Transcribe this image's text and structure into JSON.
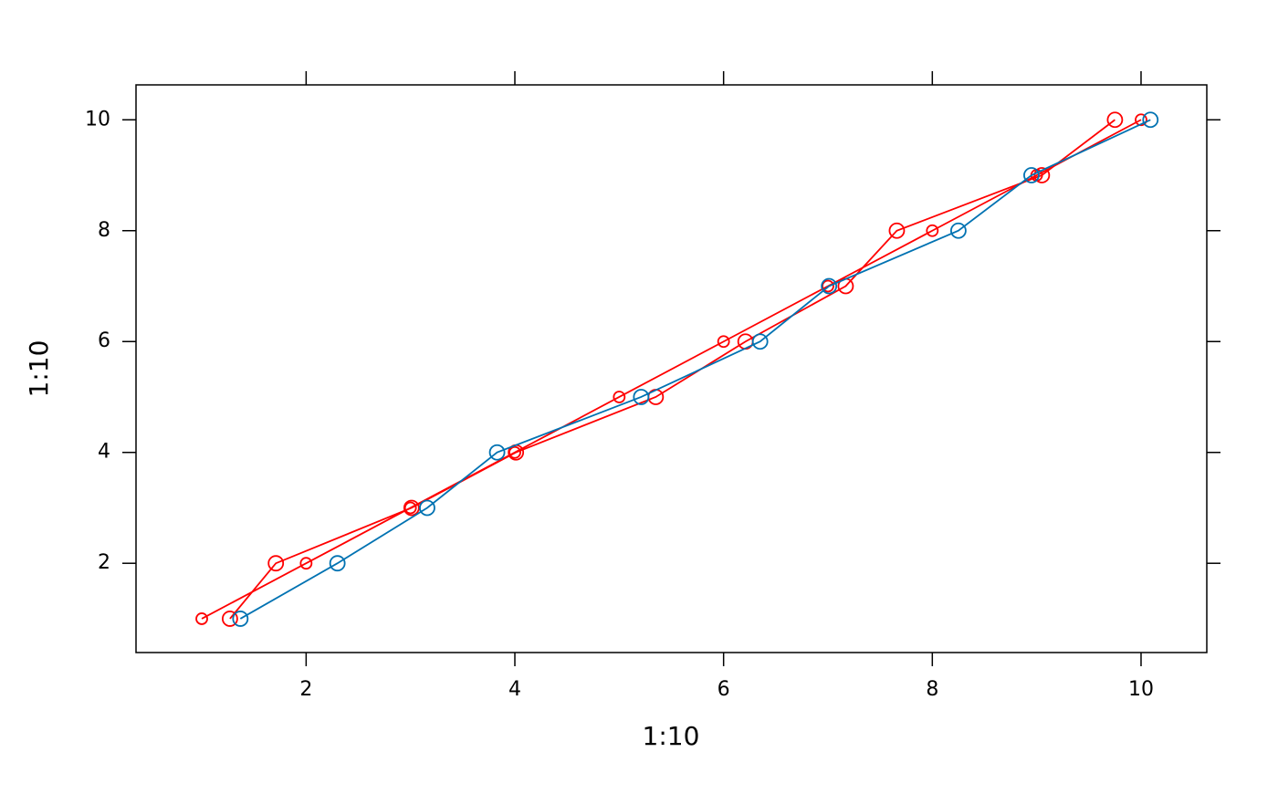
{
  "chart_data": {
    "type": "line",
    "xlabel": "1:10",
    "ylabel": "1:10",
    "xlim": [
      0.37,
      10.63
    ],
    "ylim": [
      0.39,
      10.63
    ],
    "xticks": [
      2,
      4,
      6,
      8,
      10
    ],
    "yticks": [
      2,
      4,
      6,
      8,
      10
    ],
    "series": [
      {
        "color": "#ff0000",
        "marker_size": 6,
        "x": [
          1,
          2,
          3,
          4,
          5,
          6,
          7,
          8,
          9,
          10
        ],
        "values": [
          1,
          2,
          3,
          4,
          5,
          6,
          7,
          8,
          9,
          10
        ]
      },
      {
        "color": "#ff0000",
        "marker_size": 8,
        "x": [
          1.27,
          1.71,
          3.01,
          4.01,
          5.35,
          6.21,
          7.17,
          7.66,
          9.05,
          9.75
        ],
        "values": [
          1,
          2,
          3,
          4,
          5,
          6,
          7,
          8,
          9,
          10
        ]
      },
      {
        "color": "#0072b2",
        "marker_size": 8,
        "x": [
          1.37,
          2.3,
          3.16,
          3.83,
          5.21,
          6.35,
          7.01,
          8.25,
          8.95,
          10.09
        ],
        "values": [
          1,
          2,
          3,
          4,
          5,
          6,
          7,
          8,
          9,
          10
        ]
      }
    ]
  }
}
